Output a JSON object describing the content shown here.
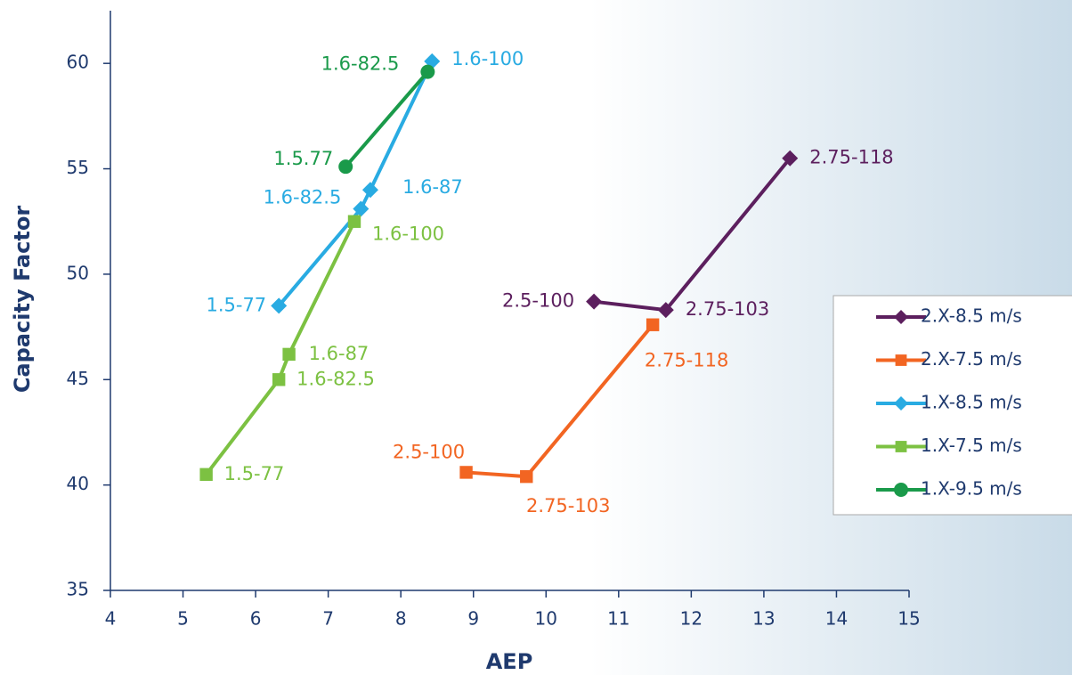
{
  "chart_data": {
    "type": "line",
    "x_label": "AEP",
    "y_label": "Capacity Factor",
    "xlim": [
      4,
      15
    ],
    "xticks": [
      4,
      5,
      6,
      7,
      8,
      9,
      10,
      11,
      12,
      13,
      14,
      15
    ],
    "ylim": [
      35,
      62.5
    ],
    "yticks": [
      35,
      40,
      45,
      50,
      55,
      60
    ],
    "series": [
      {
        "name": "2.X-8.5 m/s",
        "color": "#5c1f5e",
        "marker": "diamond",
        "x": [
          10.66,
          11.65,
          13.36
        ],
        "y": [
          48.7,
          48.3,
          55.5
        ],
        "labels": [
          "2.5-100",
          "2.75-103",
          "2.75-118"
        ]
      },
      {
        "name": "2.X-7.5 m/s",
        "color": "#f26522",
        "marker": "square",
        "x": [
          8.9,
          9.73,
          11.47
        ],
        "y": [
          40.6,
          40.4,
          47.6
        ],
        "labels": [
          "2.5-100",
          "2.75-103",
          "2.75-118"
        ]
      },
      {
        "name": "1.X-8.5 m/s",
        "color": "#29abe2",
        "marker": "diamond",
        "x": [
          6.32,
          7.45,
          7.58,
          8.43
        ],
        "y": [
          48.5,
          53.1,
          54.0,
          60.1
        ],
        "labels": [
          "1.5-77",
          "1.6-82.5",
          "1.6-87",
          "1.6-100"
        ]
      },
      {
        "name": "1.X-7.5 m/s",
        "color": "#7cc142",
        "marker": "square",
        "x": [
          5.32,
          6.32,
          6.46,
          7.36
        ],
        "y": [
          40.5,
          45.0,
          46.2,
          52.5
        ],
        "labels": [
          "1.5-77",
          "1.6-82.5",
          "1.6-87",
          "1.6-100"
        ]
      },
      {
        "name": "1.X-9.5 m/s",
        "color": "#1a9a4a",
        "marker": "circle",
        "x": [
          7.24,
          8.37
        ],
        "y": [
          55.1,
          59.6
        ],
        "labels": [
          "1.5.77",
          "1.6-82.5"
        ]
      }
    ]
  }
}
